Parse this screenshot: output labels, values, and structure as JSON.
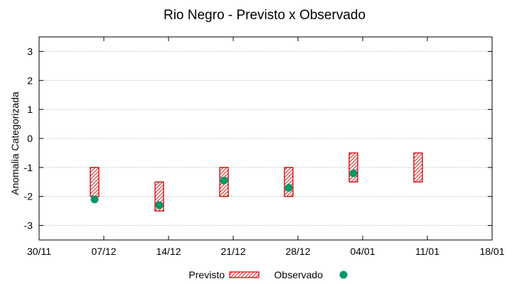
{
  "chart_data": {
    "type": "range-bar+scatter",
    "title": "Rio Negro - Previsto x Observado",
    "xlabel": "",
    "ylabel": "Anomalia Categorizada",
    "ylim": [
      -3.5,
      3.5
    ],
    "yticks": [
      3,
      2,
      1,
      0,
      -1,
      -2,
      -3
    ],
    "grid": true,
    "xlim_days": [
      0,
      49
    ],
    "x_ticks": [
      {
        "day": 0,
        "label": "30/11"
      },
      {
        "day": 7,
        "label": "07/12"
      },
      {
        "day": 14,
        "label": "14/12"
      },
      {
        "day": 21,
        "label": "21/12"
      },
      {
        "day": 28,
        "label": "28/12"
      },
      {
        "day": 35,
        "label": "04/01"
      },
      {
        "day": 42,
        "label": "11/01"
      },
      {
        "day": 49,
        "label": "18/01"
      }
    ],
    "series": [
      {
        "name": "Previsto",
        "kind": "range",
        "color": "#cc0000",
        "points": [
          {
            "day": 6,
            "low": -2.0,
            "high": -1.0
          },
          {
            "day": 13,
            "low": -2.5,
            "high": -1.5
          },
          {
            "day": 20,
            "low": -2.0,
            "high": -1.0
          },
          {
            "day": 27,
            "low": -2.0,
            "high": -1.0
          },
          {
            "day": 34,
            "low": -1.5,
            "high": -0.5
          },
          {
            "day": 41,
            "low": -1.5,
            "high": -0.5
          }
        ]
      },
      {
        "name": "Observado",
        "kind": "point",
        "color": "#009966",
        "points": [
          {
            "day": 6,
            "value": -2.1
          },
          {
            "day": 13,
            "value": -2.3
          },
          {
            "day": 20,
            "value": -1.45
          },
          {
            "day": 27,
            "value": -1.7
          },
          {
            "day": 34,
            "value": -1.2
          }
        ]
      }
    ],
    "legend": [
      "Previsto",
      "Observado"
    ],
    "legend_position": "bottom"
  }
}
